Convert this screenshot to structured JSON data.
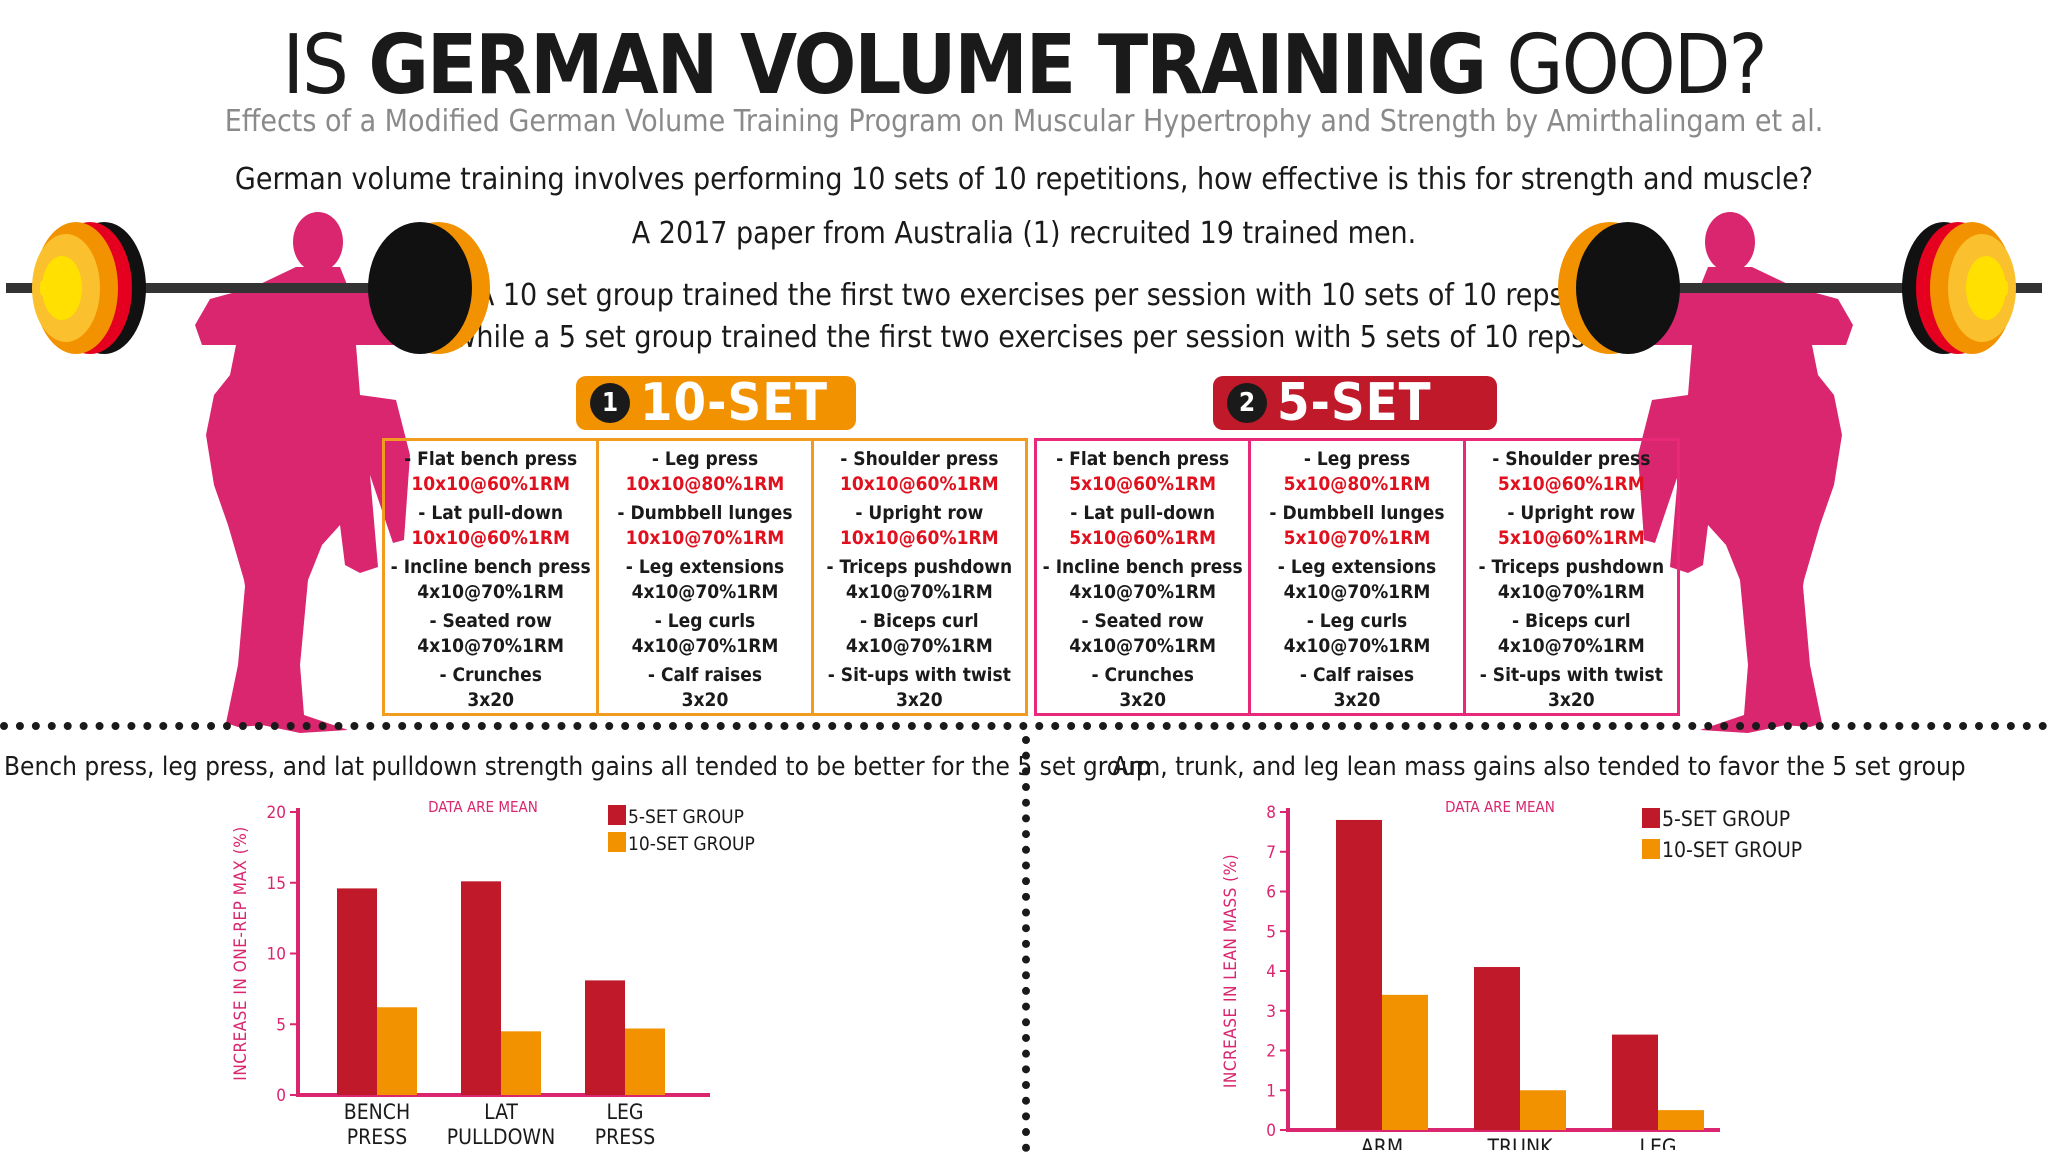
{
  "header": {
    "title_pre": "IS ",
    "title_bold": "GERMAN VOLUME TRAINING",
    "title_post": " GOOD?",
    "subtitle": "Effects of a Modified German Volume Training Program on Muscular Hypertrophy and Strength by Amirthalingam et al."
  },
  "intro": {
    "line1": "German volume training involves performing 10 sets of 10 repetitions, how effective is this for strength and muscle?",
    "line2": "A 2017 paper from Australia (1) recruited 19 trained men.",
    "line3": "A 10 set group trained the first two exercises per session with 10 sets of 10 reps,",
    "line4": "while a 5 set group trained the first two exercises per session with 5 sets of 10 reps."
  },
  "colors": {
    "five_set": "#c0192a",
    "ten_set": "#f29200",
    "pink": "#d9266f",
    "border_10": "#f29c1f",
    "border_5": "#e8297a"
  },
  "groups": [
    {
      "number": "1",
      "label": "10-SET",
      "columns": [
        [
          {
            "name": "- Flat bench press",
            "presc": "10x10@60%1RM",
            "red": true
          },
          {
            "name": "- Lat pull-down",
            "presc": "10x10@60%1RM",
            "red": true
          },
          {
            "name": "- Incline bench press",
            "presc": "4x10@70%1RM",
            "red": false
          },
          {
            "name": "- Seated row",
            "presc": "4x10@70%1RM",
            "red": false
          },
          {
            "name": "- Crunches",
            "presc": "3x20",
            "red": false
          }
        ],
        [
          {
            "name": "- Leg press",
            "presc": "10x10@80%1RM",
            "red": true
          },
          {
            "name": "- Dumbbell lunges",
            "presc": "10x10@70%1RM",
            "red": true
          },
          {
            "name": "- Leg extensions",
            "presc": "4x10@70%1RM",
            "red": false
          },
          {
            "name": "- Leg curls",
            "presc": "4x10@70%1RM",
            "red": false
          },
          {
            "name": "- Calf raises",
            "presc": "3x20",
            "red": false
          }
        ],
        [
          {
            "name": "- Shoulder press",
            "presc": "10x10@60%1RM",
            "red": true
          },
          {
            "name": "- Upright row",
            "presc": "10x10@60%1RM",
            "red": true
          },
          {
            "name": "- Triceps pushdown",
            "presc": "4x10@70%1RM",
            "red": false
          },
          {
            "name": "- Biceps curl",
            "presc": "4x10@70%1RM",
            "red": false
          },
          {
            "name": "- Sit-ups with twist",
            "presc": "3x20",
            "red": false
          }
        ]
      ]
    },
    {
      "number": "2",
      "label": "5-SET",
      "columns": [
        [
          {
            "name": "- Flat bench press",
            "presc": "5x10@60%1RM",
            "red": true
          },
          {
            "name": "- Lat pull-down",
            "presc": "5x10@60%1RM",
            "red": true
          },
          {
            "name": "- Incline bench press",
            "presc": "4x10@70%1RM",
            "red": false
          },
          {
            "name": "- Seated row",
            "presc": "4x10@70%1RM",
            "red": false
          },
          {
            "name": "- Crunches",
            "presc": "3x20",
            "red": false
          }
        ],
        [
          {
            "name": "- Leg press",
            "presc": "5x10@80%1RM",
            "red": true
          },
          {
            "name": "- Dumbbell lunges",
            "presc": "5x10@70%1RM",
            "red": true
          },
          {
            "name": "- Leg extensions",
            "presc": "4x10@70%1RM",
            "red": false
          },
          {
            "name": "- Leg curls",
            "presc": "4x10@70%1RM",
            "red": false
          },
          {
            "name": "- Calf raises",
            "presc": "3x20",
            "red": false
          }
        ],
        [
          {
            "name": "- Shoulder press",
            "presc": "5x10@60%1RM",
            "red": true
          },
          {
            "name": "- Upright row",
            "presc": "5x10@60%1RM",
            "red": true
          },
          {
            "name": "- Triceps pushdown",
            "presc": "4x10@70%1RM",
            "red": false
          },
          {
            "name": "- Biceps curl",
            "presc": "4x10@70%1RM",
            "red": false
          },
          {
            "name": "- Sit-ups with twist",
            "presc": "3x20",
            "red": false
          }
        ]
      ]
    }
  ],
  "sections": {
    "left_title": "Bench press, leg press, and lat pulldown strength gains all tended to be better for the 5 set group",
    "right_title": "Arm, trunk, and leg lean mass gains also tended  to favor the 5 set group"
  },
  "chart_data": [
    {
      "type": "bar",
      "note": "DATA ARE MEAN",
      "ylabel": "INCREASE IN ONE-REP MAX (%)",
      "ylim": [
        0,
        20
      ],
      "yticks": [
        0,
        5,
        10,
        15,
        20
      ],
      "categories": [
        [
          "BENCH",
          "PRESS"
        ],
        [
          "LAT",
          "PULLDOWN"
        ],
        [
          "LEG",
          "PRESS"
        ]
      ],
      "series": [
        {
          "name": "5-SET GROUP",
          "color": "#c0192a",
          "values": [
            14.6,
            15.1,
            8.1
          ]
        },
        {
          "name": "10-SET GROUP",
          "color": "#f29200",
          "values": [
            6.2,
            4.5,
            4.7
          ]
        }
      ],
      "legend": "top-right",
      "grid": false
    },
    {
      "type": "bar",
      "note": "DATA ARE MEAN",
      "ylabel": "INCREASE IN LEAN MASS (%)",
      "ylim": [
        0,
        8
      ],
      "yticks": [
        0,
        1,
        2,
        3,
        4,
        5,
        6,
        7,
        8
      ],
      "categories": [
        [
          "ARM"
        ],
        [
          "TRUNK"
        ],
        [
          "LEG"
        ]
      ],
      "series": [
        {
          "name": "5-SET GROUP",
          "color": "#c0192a",
          "values": [
            7.8,
            4.1,
            2.4
          ]
        },
        {
          "name": "10-SET GROUP",
          "color": "#f29200",
          "values": [
            3.4,
            1.0,
            0.5
          ]
        }
      ],
      "legend": "top-right",
      "grid": false
    }
  ]
}
